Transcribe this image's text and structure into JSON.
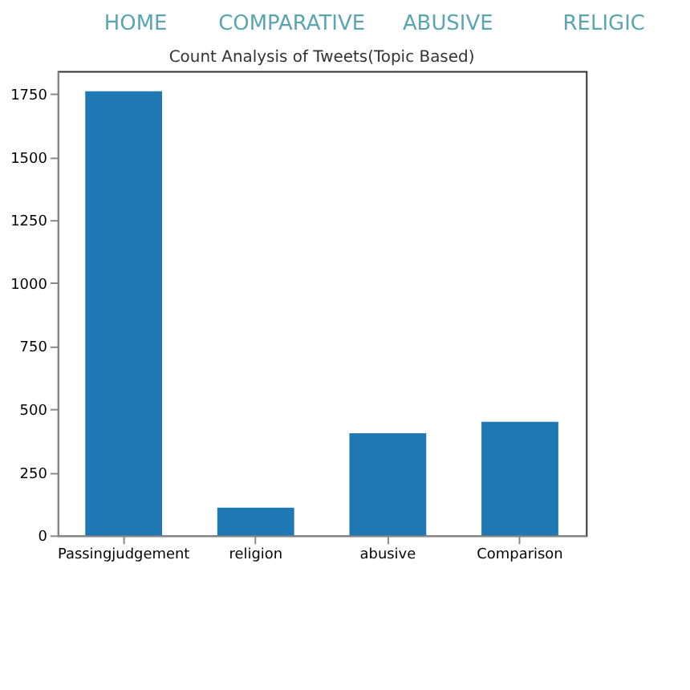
{
  "chart_data": {
    "type": "bar",
    "title": "Count Analysis of Tweets(Topic Based)",
    "annotations": [
      "HOME",
      "COMPARATIVE",
      "ABUSIVE",
      "RELIGIC"
    ],
    "categories": [
      "Passingjudgement",
      "religion",
      "abusive",
      "Comparison"
    ],
    "values": [
      1760,
      110,
      405,
      450
    ],
    "color": "#1f77b4",
    "ylim": [
      0,
      1840
    ],
    "yticks": [
      0,
      250,
      500,
      750,
      1000,
      1250,
      1500,
      1750
    ],
    "grid": false
  }
}
